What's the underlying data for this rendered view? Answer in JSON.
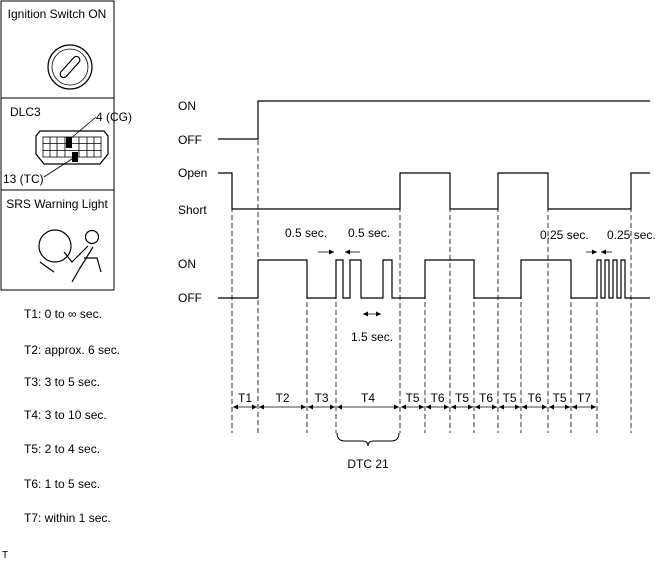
{
  "panels": {
    "ignition_title": "Ignition Switch ON",
    "dlc_title": "DLC3",
    "dlc_pin_cg": "4 (CG)",
    "dlc_pin_tc": "13 (TC)",
    "srs_title": "SRS Warning Light"
  },
  "levels": {
    "ig_on": "ON",
    "ig_off": "OFF",
    "tc_open": "Open",
    "tc_short": "Short",
    "lamp_on": "ON",
    "lamp_off": "OFF"
  },
  "annotations": {
    "half_sec_a": "0.5 sec.",
    "half_sec_b": "0.5 sec.",
    "one_half_sec": "1.5 sec.",
    "quarter_sec_a": "0.25 sec.",
    "quarter_sec_b": "0.25 sec.",
    "dtc": "DTC 21"
  },
  "intervals": [
    "T1",
    "T2",
    "T3",
    "T4",
    "T5",
    "T6",
    "T5",
    "T6",
    "T5",
    "T6",
    "T5",
    "T7"
  ],
  "legend": [
    "T1: 0 to ∞ sec.",
    "T2: approx. 6 sec.",
    "T3: 3 to 5 sec.",
    "T4: 3 to 10 sec.",
    "T5: 2 to 4 sec.",
    "T6: 1 to 5 sec.",
    "T7: within 1 sec."
  ],
  "footer_mark": "T"
}
